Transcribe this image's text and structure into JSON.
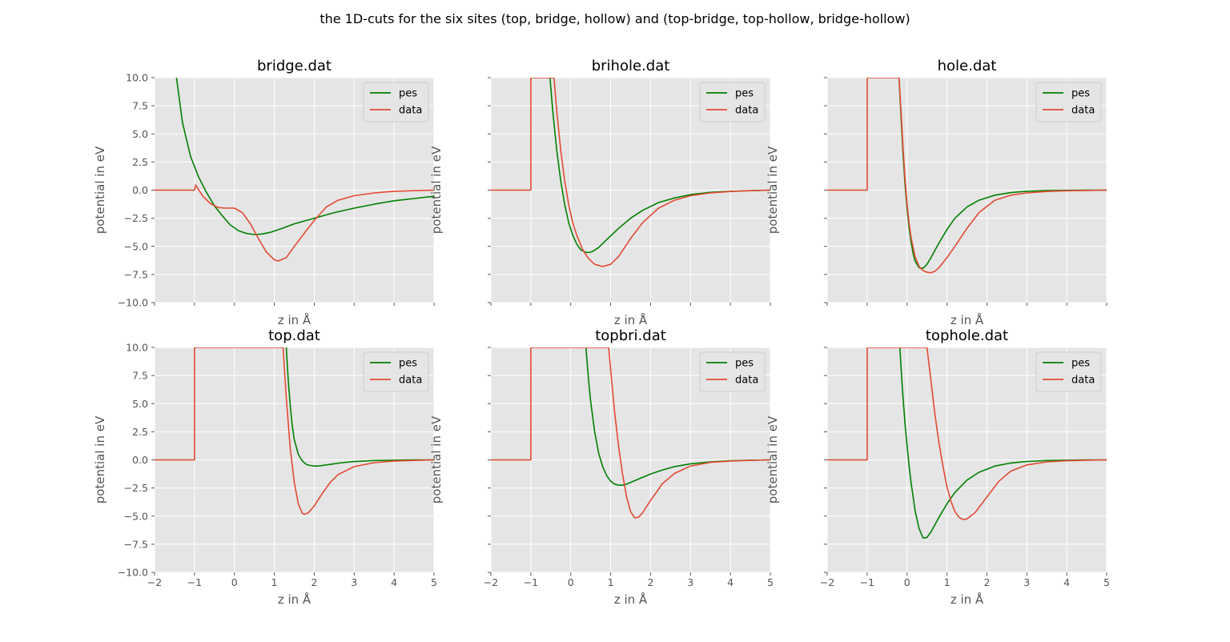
{
  "figure": {
    "title": "the 1D-cuts for the six sites (top, bridge, hollow) and (top-bridge, top-hollow, bridge-hollow)"
  },
  "colors": {
    "pes": "#008000",
    "data": "#E24A33",
    "axes_bg": "#E5E5E5",
    "grid": "#FFFFFF"
  },
  "chart_data": [
    {
      "type": "line",
      "title": "bridge.dat",
      "xlabel": "z in Å",
      "ylabel": "potential in eV",
      "xlim": [
        -2,
        5
      ],
      "ylim": [
        -10,
        10
      ],
      "x_ticks": [
        -2,
        -1,
        0,
        1,
        2,
        3,
        4,
        5
      ],
      "y_ticks": [
        -10.0,
        -7.5,
        -5.0,
        -2.5,
        0.0,
        2.5,
        5.0,
        7.5,
        10.0
      ],
      "x_tick_labels_visible": false,
      "y_tick_labels_visible": true,
      "grid": true,
      "legend_position": "top-right",
      "series": [
        {
          "name": "pes",
          "x": [
            -1.45,
            -1.3,
            -1.1,
            -0.9,
            -0.7,
            -0.5,
            -0.3,
            -0.1,
            0.1,
            0.3,
            0.5,
            0.7,
            0.9,
            1.2,
            1.5,
            2.0,
            2.5,
            3.0,
            3.5,
            4.0,
            4.5,
            5.0
          ],
          "y": [
            10.0,
            6.0,
            3.0,
            1.2,
            -0.2,
            -1.4,
            -2.3,
            -3.1,
            -3.6,
            -3.85,
            -3.95,
            -3.9,
            -3.75,
            -3.4,
            -3.0,
            -2.5,
            -2.0,
            -1.6,
            -1.25,
            -0.95,
            -0.75,
            -0.55
          ]
        },
        {
          "name": "data",
          "x": [
            -2,
            -1.0,
            -1.0,
            -0.97,
            -0.8,
            -0.6,
            -0.4,
            -0.2,
            0.0,
            0.2,
            0.4,
            0.6,
            0.8,
            1.0,
            1.1,
            1.3,
            1.5,
            1.8,
            2.0,
            2.3,
            2.6,
            3.0,
            3.5,
            4.0,
            4.5,
            5.0
          ],
          "y": [
            0,
            0,
            0.0,
            0.45,
            -0.5,
            -1.2,
            -1.55,
            -1.6,
            -1.6,
            -2.0,
            -3.0,
            -4.3,
            -5.5,
            -6.2,
            -6.3,
            -6.0,
            -5.0,
            -3.6,
            -2.7,
            -1.5,
            -0.9,
            -0.5,
            -0.25,
            -0.1,
            -0.05,
            0.0
          ]
        }
      ]
    },
    {
      "type": "line",
      "title": "brihole.dat",
      "xlabel": "z in Å",
      "ylabel": "potential in eV",
      "xlim": [
        -2,
        5
      ],
      "ylim": [
        -10,
        10
      ],
      "x_ticks": [
        -2,
        -1,
        0,
        1,
        2,
        3,
        4,
        5
      ],
      "y_ticks": [
        -10.0,
        -7.5,
        -5.0,
        -2.5,
        0.0,
        2.5,
        5.0,
        7.5,
        10.0
      ],
      "x_tick_labels_visible": false,
      "y_tick_labels_visible": false,
      "grid": true,
      "legend_position": "top-right",
      "series": [
        {
          "name": "pes",
          "x": [
            -0.52,
            -0.45,
            -0.35,
            -0.25,
            -0.15,
            -0.05,
            0.05,
            0.15,
            0.25,
            0.35,
            0.45,
            0.55,
            0.7,
            0.9,
            1.2,
            1.5,
            1.8,
            2.2,
            2.6,
            3.0,
            3.5,
            4.0,
            4.5,
            5.0
          ],
          "y": [
            10.0,
            7.0,
            3.5,
            0.8,
            -1.3,
            -2.9,
            -4.0,
            -4.8,
            -5.3,
            -5.5,
            -5.55,
            -5.45,
            -5.1,
            -4.4,
            -3.4,
            -2.5,
            -1.8,
            -1.1,
            -0.7,
            -0.4,
            -0.2,
            -0.1,
            -0.05,
            0.0
          ]
        },
        {
          "name": "data",
          "x": [
            -2,
            -1.0,
            -1.0,
            -1.0,
            -0.42,
            -0.35,
            -0.25,
            -0.15,
            -0.05,
            0.05,
            0.15,
            0.3,
            0.45,
            0.6,
            0.8,
            1.0,
            1.2,
            1.5,
            1.8,
            2.2,
            2.6,
            3.0,
            3.5,
            4.0,
            4.5,
            5.0
          ],
          "y": [
            0,
            0,
            0,
            10.0,
            10.0,
            7.0,
            3.5,
            0.8,
            -1.3,
            -2.9,
            -4.0,
            -5.3,
            -6.1,
            -6.6,
            -6.8,
            -6.6,
            -5.9,
            -4.3,
            -2.9,
            -1.6,
            -0.9,
            -0.5,
            -0.25,
            -0.12,
            -0.05,
            0.0
          ]
        }
      ]
    },
    {
      "type": "line",
      "title": "hole.dat",
      "xlabel": "z in Å",
      "ylabel": "potential in eV",
      "xlim": [
        -2,
        5
      ],
      "ylim": [
        -10,
        10
      ],
      "x_ticks": [
        -2,
        -1,
        0,
        1,
        2,
        3,
        4,
        5
      ],
      "y_ticks": [
        -10.0,
        -7.5,
        -5.0,
        -2.5,
        0.0,
        2.5,
        5.0,
        7.5,
        10.0
      ],
      "x_tick_labels_visible": false,
      "y_tick_labels_visible": false,
      "grid": true,
      "legend_position": "top-right",
      "series": [
        {
          "name": "pes",
          "x": [
            -0.2,
            -0.15,
            -0.1,
            -0.05,
            0.0,
            0.05,
            0.1,
            0.15,
            0.2,
            0.3,
            0.4,
            0.5,
            0.6,
            0.8,
            1.0,
            1.2,
            1.5,
            1.8,
            2.2,
            2.6,
            3.0,
            3.5,
            4.0,
            4.5,
            5.0
          ],
          "y": [
            10.0,
            6.5,
            3.2,
            0.5,
            -1.6,
            -3.3,
            -4.6,
            -5.6,
            -6.3,
            -6.9,
            -6.95,
            -6.6,
            -6.0,
            -4.7,
            -3.5,
            -2.5,
            -1.5,
            -0.9,
            -0.45,
            -0.22,
            -0.1,
            -0.04,
            -0.02,
            -0.01,
            0.0
          ]
        },
        {
          "name": "data",
          "x": [
            -2,
            -1.0,
            -1.0,
            -1.0,
            -0.2,
            -0.15,
            -0.1,
            -0.05,
            0.0,
            0.05,
            0.1,
            0.2,
            0.3,
            0.4,
            0.5,
            0.6,
            0.7,
            0.8,
            1.0,
            1.2,
            1.5,
            1.8,
            2.2,
            2.6,
            3.0,
            3.5,
            4.0,
            4.5,
            5.0
          ],
          "y": [
            0,
            0,
            0,
            10.0,
            10.0,
            7.0,
            3.8,
            1.0,
            -1.2,
            -2.9,
            -4.2,
            -5.9,
            -6.8,
            -7.15,
            -7.3,
            -7.35,
            -7.2,
            -6.9,
            -6.0,
            -5.0,
            -3.4,
            -2.0,
            -0.9,
            -0.45,
            -0.25,
            -0.12,
            -0.06,
            -0.03,
            0.0
          ]
        }
      ]
    },
    {
      "type": "line",
      "title": "top.dat",
      "xlabel": "z in Å",
      "ylabel": "potential in eV",
      "xlim": [
        -2,
        5
      ],
      "ylim": [
        -10,
        10
      ],
      "x_ticks": [
        -2,
        -1,
        0,
        1,
        2,
        3,
        4,
        5
      ],
      "y_ticks": [
        -10.0,
        -7.5,
        -5.0,
        -2.5,
        0.0,
        2.5,
        5.0,
        7.5,
        10.0
      ],
      "x_tick_labels_visible": true,
      "y_tick_labels_visible": true,
      "grid": true,
      "legend_position": "top-right",
      "series": [
        {
          "name": "pes",
          "x": [
            1.3,
            1.35,
            1.4,
            1.45,
            1.5,
            1.6,
            1.7,
            1.8,
            1.9,
            2.0,
            2.1,
            2.2,
            2.4,
            2.7,
            3.0,
            3.5,
            4.0,
            4.5,
            5.0
          ],
          "y": [
            10.0,
            7.0,
            4.8,
            3.0,
            1.8,
            0.5,
            -0.1,
            -0.4,
            -0.5,
            -0.55,
            -0.55,
            -0.5,
            -0.4,
            -0.25,
            -0.15,
            -0.06,
            -0.03,
            -0.01,
            0.0
          ]
        },
        {
          "name": "data",
          "x": [
            -2,
            -1.0,
            -1.0,
            -1.0,
            1.22,
            1.3,
            1.4,
            1.5,
            1.6,
            1.7,
            1.75,
            1.85,
            2.0,
            2.2,
            2.4,
            2.6,
            3.0,
            3.5,
            4.0,
            4.5,
            5.0
          ],
          "y": [
            0,
            0,
            0,
            10.0,
            10.0,
            5.5,
            1.0,
            -2.0,
            -3.9,
            -4.75,
            -4.85,
            -4.7,
            -4.1,
            -3.0,
            -2.0,
            -1.3,
            -0.6,
            -0.25,
            -0.1,
            -0.05,
            0.0
          ]
        }
      ]
    },
    {
      "type": "line",
      "title": "topbri.dat",
      "xlabel": "z in Å",
      "ylabel": "potential in eV",
      "xlim": [
        -2,
        5
      ],
      "ylim": [
        -10,
        10
      ],
      "x_ticks": [
        -2,
        -1,
        0,
        1,
        2,
        3,
        4,
        5
      ],
      "y_ticks": [
        -10.0,
        -7.5,
        -5.0,
        -2.5,
        0.0,
        2.5,
        5.0,
        7.5,
        10.0
      ],
      "x_tick_labels_visible": true,
      "y_tick_labels_visible": false,
      "grid": true,
      "legend_position": "top-right",
      "series": [
        {
          "name": "pes",
          "x": [
            0.38,
            0.45,
            0.5,
            0.6,
            0.7,
            0.8,
            0.9,
            1.0,
            1.1,
            1.2,
            1.3,
            1.4,
            1.6,
            1.8,
            2.0,
            2.3,
            2.6,
            3.0,
            3.5,
            4.0,
            4.5,
            5.0
          ],
          "y": [
            10.0,
            7.0,
            5.2,
            2.5,
            0.6,
            -0.6,
            -1.4,
            -1.9,
            -2.15,
            -2.25,
            -2.25,
            -2.15,
            -1.85,
            -1.55,
            -1.25,
            -0.9,
            -0.6,
            -0.35,
            -0.18,
            -0.08,
            -0.03,
            0.0
          ]
        },
        {
          "name": "data",
          "x": [
            -2,
            -1.0,
            -1.0,
            -1.0,
            0.95,
            1.0,
            1.1,
            1.2,
            1.3,
            1.4,
            1.5,
            1.6,
            1.7,
            1.8,
            2.0,
            2.3,
            2.6,
            3.0,
            3.5,
            4.0,
            4.5,
            5.0
          ],
          "y": [
            0,
            0,
            0,
            10.0,
            10.0,
            8.0,
            4.2,
            1.2,
            -1.3,
            -3.3,
            -4.6,
            -5.15,
            -5.1,
            -4.7,
            -3.6,
            -2.1,
            -1.2,
            -0.55,
            -0.22,
            -0.1,
            -0.04,
            0.0
          ]
        }
      ]
    },
    {
      "type": "line",
      "title": "tophole.dat",
      "xlabel": "z in Å",
      "ylabel": "potential in eV",
      "xlim": [
        -2,
        5
      ],
      "ylim": [
        -10,
        10
      ],
      "x_ticks": [
        -2,
        -1,
        0,
        1,
        2,
        3,
        4,
        5
      ],
      "y_ticks": [
        -10.0,
        -7.5,
        -5.0,
        -2.5,
        0.0,
        2.5,
        5.0,
        7.5,
        10.0
      ],
      "x_tick_labels_visible": true,
      "y_tick_labels_visible": false,
      "grid": true,
      "legend_position": "top-right",
      "series": [
        {
          "name": "pes",
          "x": [
            -0.18,
            -0.12,
            -0.05,
            0.0,
            0.05,
            0.1,
            0.2,
            0.3,
            0.4,
            0.5,
            0.6,
            0.8,
            1.0,
            1.2,
            1.5,
            1.8,
            2.2,
            2.6,
            3.0,
            3.5,
            4.0,
            4.5,
            5.0
          ],
          "y": [
            10.0,
            6.5,
            3.2,
            1.3,
            -0.5,
            -2.0,
            -4.5,
            -6.1,
            -6.95,
            -6.9,
            -6.4,
            -5.1,
            -3.9,
            -2.9,
            -1.8,
            -1.1,
            -0.55,
            -0.28,
            -0.14,
            -0.06,
            -0.03,
            -0.01,
            0.0
          ]
        },
        {
          "name": "data",
          "x": [
            -2,
            -1.0,
            -1.0,
            -1.0,
            0.5,
            0.6,
            0.7,
            0.8,
            0.9,
            1.0,
            1.1,
            1.2,
            1.3,
            1.4,
            1.5,
            1.7,
            2.0,
            2.3,
            2.6,
            3.0,
            3.5,
            4.0,
            4.5,
            5.0
          ],
          "y": [
            0,
            0,
            0,
            10.0,
            10.0,
            7.0,
            4.0,
            1.5,
            -0.6,
            -2.4,
            -3.7,
            -4.6,
            -5.1,
            -5.3,
            -5.25,
            -4.7,
            -3.3,
            -1.9,
            -1.0,
            -0.45,
            -0.18,
            -0.08,
            -0.03,
            0.0
          ]
        }
      ]
    }
  ]
}
